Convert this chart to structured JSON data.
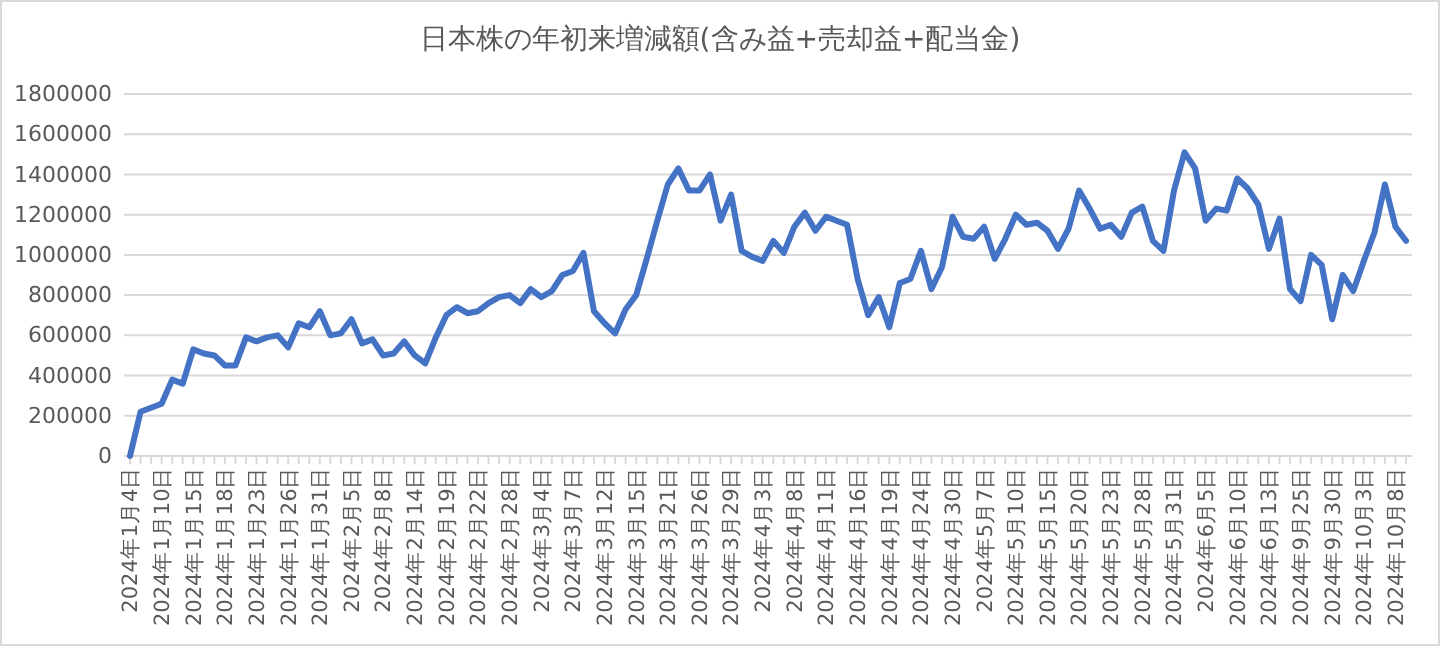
{
  "chart_data": {
    "type": "line",
    "title": "日本株の年初来増減額(含み益+売却益+配当金)",
    "categories": [
      "2024年1月4日",
      null,
      null,
      "2024年1月10日",
      null,
      null,
      "2024年1月15日",
      null,
      null,
      "2024年1月18日",
      null,
      null,
      "2024年1月23日",
      null,
      null,
      "2024年1月26日",
      null,
      null,
      "2024年1月31日",
      null,
      null,
      "2024年2月5日",
      null,
      null,
      "2024年2月8日",
      null,
      null,
      "2024年2月14日",
      null,
      null,
      "2024年2月19日",
      null,
      null,
      "2024年2月22日",
      null,
      null,
      "2024年2月28日",
      null,
      null,
      "2024年3月4日",
      null,
      null,
      "2024年3月7日",
      null,
      null,
      "2024年3月12日",
      null,
      null,
      "2024年3月15日",
      null,
      null,
      "2024年3月21日",
      null,
      null,
      "2024年3月26日",
      null,
      null,
      "2024年3月29日",
      null,
      null,
      "2024年4月3日",
      null,
      null,
      "2024年4月8日",
      null,
      null,
      "2024年4月11日",
      null,
      null,
      "2024年4月16日",
      null,
      null,
      "2024年4月19日",
      null,
      null,
      "2024年4月24日",
      null,
      null,
      "2024年4月30日",
      null,
      null,
      "2024年5月7日",
      null,
      null,
      "2024年5月10日",
      null,
      null,
      "2024年5月15日",
      null,
      null,
      "2024年5月20日",
      null,
      null,
      "2024年5月23日",
      null,
      null,
      "2024年5月28日",
      null,
      null,
      "2024年5月31日",
      null,
      null,
      "2024年6月5日",
      null,
      null,
      "2024年6月10日",
      null,
      null,
      "2024年6月13日",
      null,
      null,
      "2024年9月25日",
      null,
      null,
      "2024年9月30日",
      null,
      null,
      "2024年10月3日",
      null,
      null,
      "2024年10月8日",
      null
    ],
    "series": [
      {
        "color": "#4472c4",
        "values": [
          0,
          220000,
          240000,
          260000,
          380000,
          360000,
          530000,
          510000,
          500000,
          450000,
          450000,
          590000,
          570000,
          590000,
          600000,
          540000,
          660000,
          640000,
          720000,
          600000,
          610000,
          680000,
          560000,
          580000,
          500000,
          510000,
          570000,
          500000,
          460000,
          590000,
          700000,
          740000,
          710000,
          720000,
          760000,
          790000,
          800000,
          760000,
          830000,
          790000,
          820000,
          900000,
          920000,
          1010000,
          720000,
          660000,
          610000,
          730000,
          800000,
          980000,
          1170000,
          1350000,
          1430000,
          1320000,
          1320000,
          1400000,
          1170000,
          1300000,
          1020000,
          990000,
          970000,
          1070000,
          1010000,
          1140000,
          1210000,
          1120000,
          1190000,
          1170000,
          1150000,
          880000,
          700000,
          790000,
          640000,
          860000,
          880000,
          1020000,
          830000,
          940000,
          1190000,
          1090000,
          1080000,
          1140000,
          980000,
          1080000,
          1200000,
          1150000,
          1160000,
          1120000,
          1030000,
          1130000,
          1320000,
          1230000,
          1130000,
          1150000,
          1090000,
          1210000,
          1240000,
          1070000,
          1020000,
          1320000,
          1510000,
          1430000,
          1170000,
          1230000,
          1220000,
          1380000,
          1330000,
          1250000,
          1030000,
          1180000,
          830000,
          770000,
          1000000,
          950000,
          680000,
          900000,
          820000,
          970000,
          1110000,
          1350000,
          1140000,
          1070000
        ]
      }
    ],
    "ylim": [
      0,
      1800000
    ],
    "yticks": [
      0,
      200000,
      400000,
      600000,
      800000,
      1000000,
      1200000,
      1400000,
      1600000,
      1800000
    ],
    "grid": "y",
    "marker": "none",
    "line_style": "solid"
  }
}
